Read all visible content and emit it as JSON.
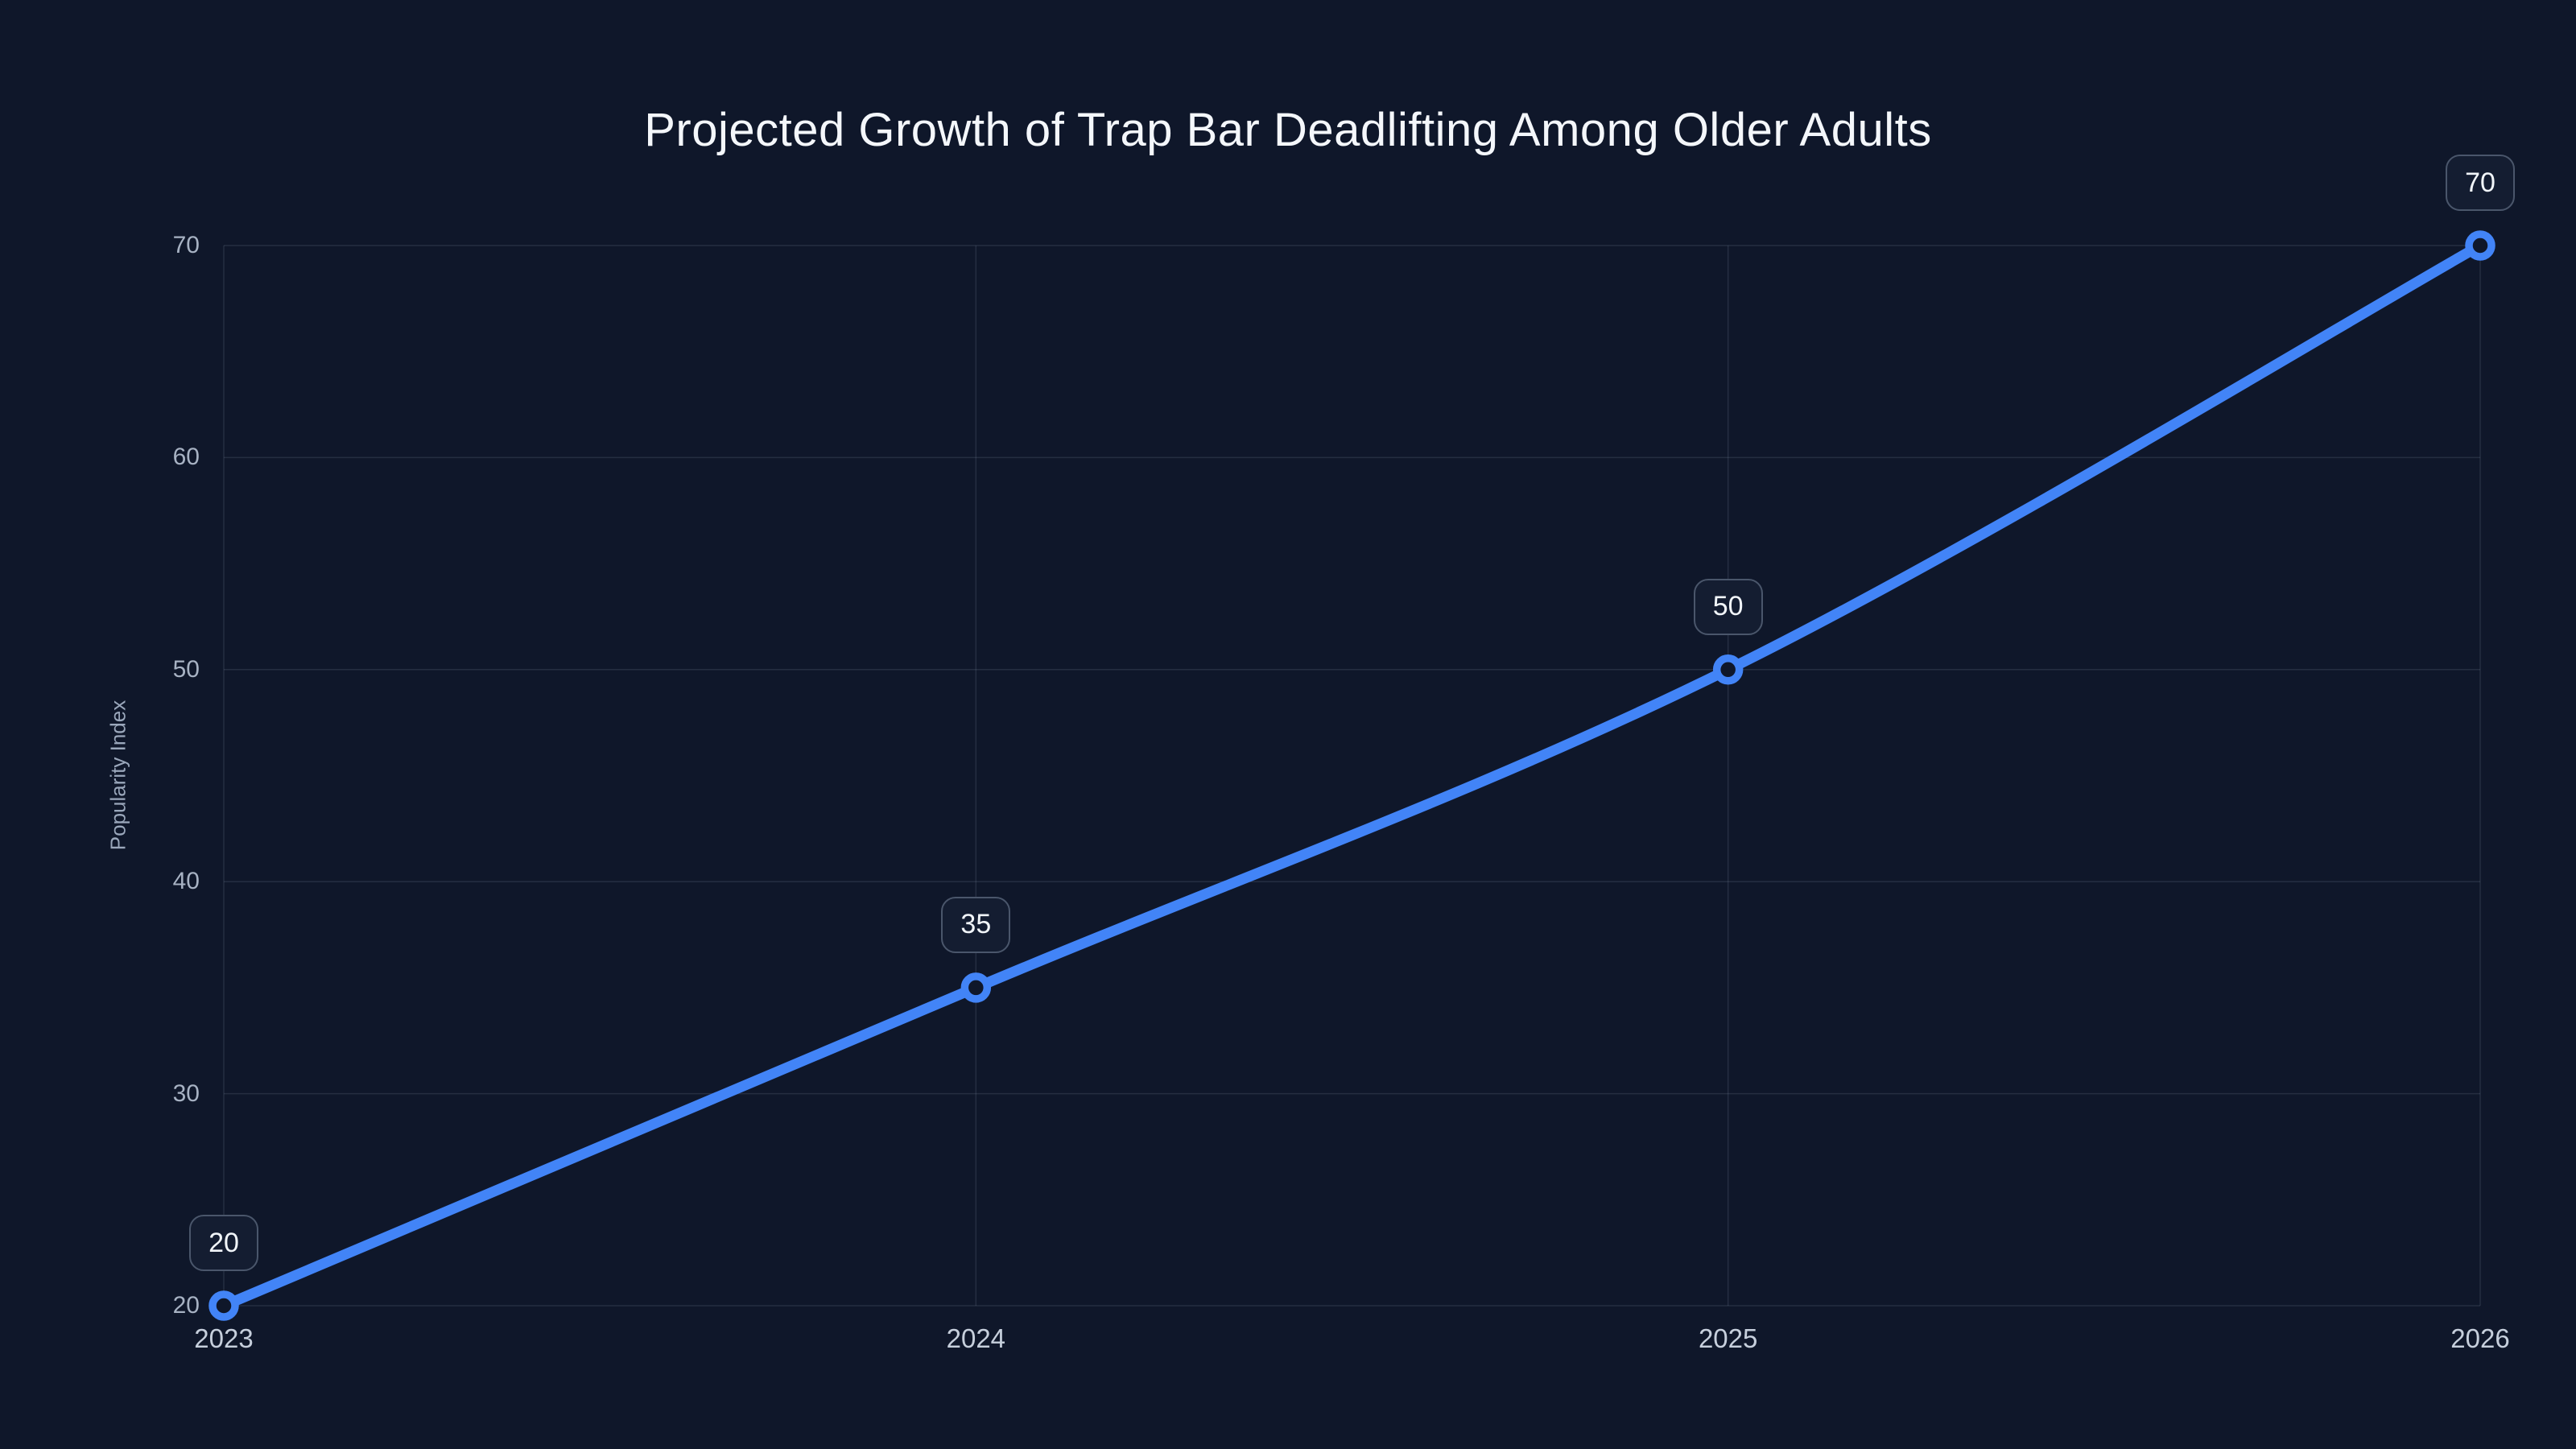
{
  "chart_data": {
    "type": "line",
    "title": "Projected Growth of Trap Bar Deadlifting Among Older Adults",
    "xlabel": "",
    "ylabel": "Popularity Index",
    "x": [
      "2023",
      "2024",
      "2025",
      "2026"
    ],
    "series": [
      {
        "name": "Popularity Index",
        "values": [
          20,
          35,
          50,
          70
        ],
        "data_labels": [
          "20",
          "35",
          "50",
          "70"
        ]
      }
    ],
    "yticks": [
      20,
      30,
      40,
      50,
      60,
      70
    ],
    "ylim": [
      20,
      70
    ],
    "grid": true,
    "legend_visible": false,
    "marker_style": "open-circle",
    "smoothing": "spline"
  },
  "colors": {
    "background": "#0f172a",
    "line": "#4284f7",
    "marker_fill": "#0f172a",
    "grid": "rgba(148,163,184,0.17)",
    "title_text": "#f4f7fb",
    "axis_text": "#a7b2c3",
    "x_axis_text": "#c6cfdc",
    "badge_background": "#141d31",
    "badge_border": "#4a566b",
    "badge_text": "#f1f5f9"
  }
}
